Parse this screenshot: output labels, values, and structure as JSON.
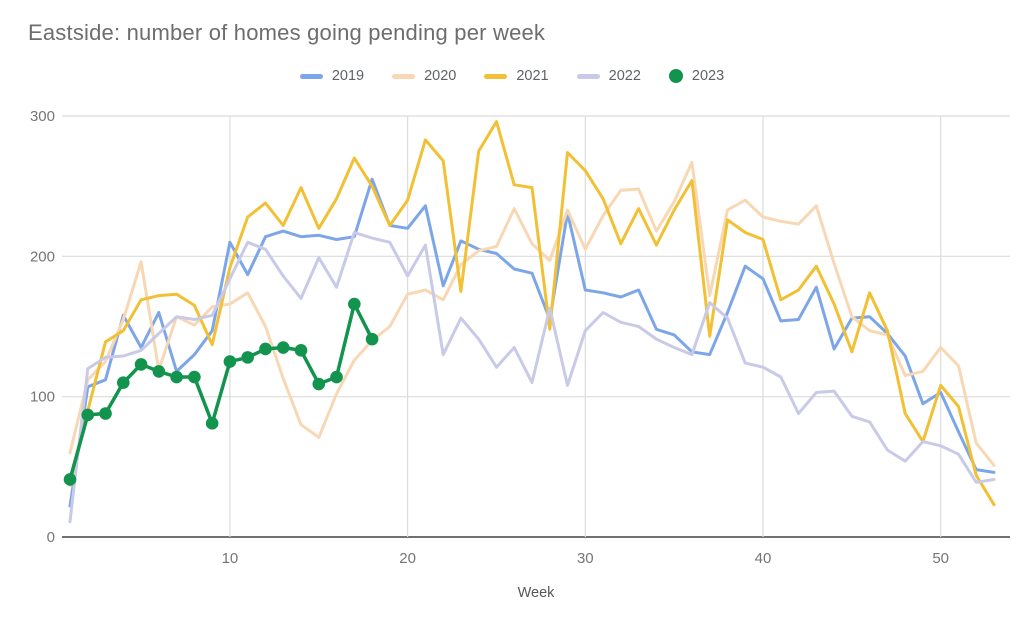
{
  "title": "Eastside: number of homes going pending per week",
  "axis": {
    "xlabel": "Week",
    "y_tick_labels": [
      "0",
      "100",
      "200",
      "300"
    ],
    "x_tick_labels": [
      "10",
      "20",
      "30",
      "40",
      "50"
    ]
  },
  "styles": {
    "grid_color": "#dcdcdc",
    "axis_line_color": "#424242",
    "tick_label_color": "#757575",
    "title_color": "#6d6d6d",
    "legend_label_color": "#5f6368"
  },
  "chart_data": {
    "type": "line",
    "title": "Eastside: number of homes going pending per week",
    "xlabel": "Week",
    "ylabel": "",
    "x_unit": "week_number",
    "x_start": 1,
    "xlim": [
      0.55,
      53.9
    ],
    "ylim": [
      0,
      300
    ],
    "y_gridlines": [
      0,
      100,
      200,
      300
    ],
    "x_gridlines": [
      10,
      20,
      30,
      40,
      50
    ],
    "grid": true,
    "legend_position": "top",
    "series": [
      {
        "name": "2019",
        "color": "#7ca6e8",
        "marker": false,
        "values": [
          22,
          107,
          112,
          158,
          135,
          160,
          118,
          130,
          147,
          210,
          187,
          214,
          218,
          214,
          215,
          212,
          214,
          255,
          222,
          220,
          236,
          179,
          211,
          205,
          202,
          191,
          188,
          155,
          231,
          176,
          174,
          171,
          176,
          148,
          144,
          132,
          130,
          160,
          193,
          184,
          154,
          155,
          178,
          134,
          156,
          157,
          145,
          129,
          95,
          103,
          75,
          48,
          46
        ]
      },
      {
        "name": "2020",
        "color": "#f8d8b4",
        "marker": false,
        "values": [
          60,
          112,
          125,
          155,
          196,
          119,
          157,
          151,
          164,
          166,
          174,
          150,
          113,
          80,
          71,
          102,
          126,
          140,
          150,
          173,
          176,
          169,
          194,
          204,
          207,
          234,
          209,
          197,
          233,
          205,
          229,
          247,
          248,
          218,
          239,
          267,
          172,
          233,
          240,
          228,
          225,
          223,
          236,
          195,
          157,
          147,
          144,
          115,
          118,
          135,
          122,
          67,
          51
        ]
      },
      {
        "name": "2021",
        "color": "#f2c034",
        "marker": false,
        "values": [
          37,
          90,
          139,
          147,
          169,
          172,
          173,
          165,
          137,
          192,
          228,
          238,
          222,
          249,
          220,
          241,
          270,
          250,
          222,
          240,
          283,
          268,
          175,
          275,
          296,
          251,
          249,
          148,
          274,
          261,
          241,
          209,
          234,
          208,
          233,
          254,
          143,
          226,
          217,
          212,
          169,
          176,
          193,
          166,
          132,
          174,
          147,
          88,
          68,
          108,
          93,
          44,
          23
        ]
      },
      {
        "name": "2022",
        "color": "#c9cae8",
        "marker": false,
        "values": [
          11,
          120,
          128,
          129,
          133,
          145,
          157,
          155,
          158,
          184,
          210,
          205,
          186,
          170,
          199,
          178,
          217,
          213,
          210,
          186,
          208,
          130,
          156,
          141,
          121,
          135,
          110,
          163,
          108,
          147,
          160,
          153,
          150,
          141,
          135,
          130,
          167,
          156,
          124,
          121,
          114,
          88,
          103,
          104,
          86,
          82,
          62,
          54,
          68,
          65,
          59,
          39,
          41
        ]
      },
      {
        "name": "2023",
        "color": "#12944e",
        "marker": true,
        "values": [
          41,
          87,
          88,
          110,
          123,
          118,
          114,
          114,
          81,
          125,
          128,
          134,
          135,
          133,
          109,
          114,
          166,
          141
        ]
      }
    ]
  }
}
